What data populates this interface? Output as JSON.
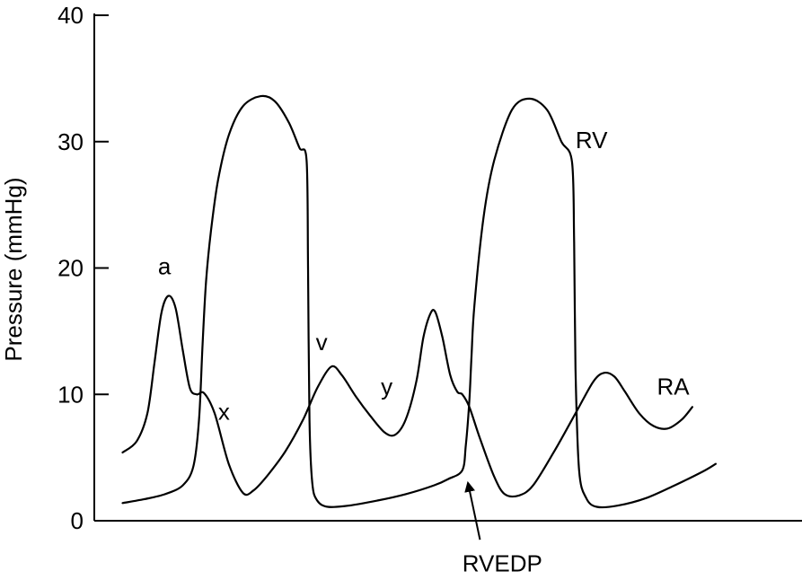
{
  "chart_data": {
    "type": "line",
    "title": "",
    "xlabel": "",
    "ylabel": "Pressure (mmHg)",
    "ylim": [
      0,
      40
    ],
    "xlim": [
      0,
      1
    ],
    "yticks": [
      0,
      10,
      20,
      30,
      40
    ],
    "grid": false,
    "legend": "none",
    "series": [
      {
        "name": "RV",
        "points": [
          [
            0.04,
            1.4
          ],
          [
            0.07,
            1.7
          ],
          [
            0.1,
            2.1
          ],
          [
            0.125,
            2.8
          ],
          [
            0.14,
            4.3
          ],
          [
            0.148,
            8
          ],
          [
            0.153,
            14
          ],
          [
            0.158,
            19
          ],
          [
            0.165,
            23
          ],
          [
            0.175,
            27
          ],
          [
            0.19,
            30.5
          ],
          [
            0.21,
            32.8
          ],
          [
            0.235,
            33.6
          ],
          [
            0.255,
            33.2
          ],
          [
            0.275,
            31.5
          ],
          [
            0.29,
            29.5
          ],
          [
            0.3,
            28.5
          ],
          [
            0.302,
            20
          ],
          [
            0.304,
            8
          ],
          [
            0.308,
            3
          ],
          [
            0.315,
            1.6
          ],
          [
            0.33,
            1.1
          ],
          [
            0.36,
            1.2
          ],
          [
            0.4,
            1.6
          ],
          [
            0.44,
            2.1
          ],
          [
            0.48,
            2.8
          ],
          [
            0.5,
            3.3
          ],
          [
            0.52,
            4.0
          ],
          [
            0.525,
            6
          ],
          [
            0.53,
            9.5
          ],
          [
            0.533,
            13
          ],
          [
            0.537,
            17
          ],
          [
            0.55,
            24
          ],
          [
            0.565,
            28.5
          ],
          [
            0.59,
            32.5
          ],
          [
            0.615,
            33.4
          ],
          [
            0.64,
            32.5
          ],
          [
            0.66,
            30
          ],
          [
            0.675,
            28.4
          ],
          [
            0.678,
            22
          ],
          [
            0.68,
            12
          ],
          [
            0.685,
            4
          ],
          [
            0.695,
            1.8
          ],
          [
            0.71,
            1.1
          ],
          [
            0.74,
            1.2
          ],
          [
            0.78,
            1.8
          ],
          [
            0.82,
            2.8
          ],
          [
            0.86,
            3.9
          ],
          [
            0.878,
            4.5
          ]
        ]
      },
      {
        "name": "RA",
        "points": [
          [
            0.04,
            5.4
          ],
          [
            0.06,
            6.3
          ],
          [
            0.075,
            8.5
          ],
          [
            0.085,
            12.5
          ],
          [
            0.095,
            16.5
          ],
          [
            0.105,
            17.8
          ],
          [
            0.115,
            16.8
          ],
          [
            0.125,
            13.5
          ],
          [
            0.135,
            10.5
          ],
          [
            0.145,
            10.0
          ],
          [
            0.155,
            10.1
          ],
          [
            0.17,
            8.5
          ],
          [
            0.19,
            4.5
          ],
          [
            0.21,
            2.2
          ],
          [
            0.225,
            2.4
          ],
          [
            0.245,
            3.6
          ],
          [
            0.27,
            5.5
          ],
          [
            0.295,
            8
          ],
          [
            0.315,
            10.5
          ],
          [
            0.335,
            12.2
          ],
          [
            0.35,
            11.5
          ],
          [
            0.37,
            9.8
          ],
          [
            0.39,
            8.3
          ],
          [
            0.41,
            7.0
          ],
          [
            0.425,
            6.8
          ],
          [
            0.44,
            8.0
          ],
          [
            0.455,
            11
          ],
          [
            0.465,
            14.5
          ],
          [
            0.475,
            16.4
          ],
          [
            0.482,
            16.5
          ],
          [
            0.492,
            14.5
          ],
          [
            0.503,
            11.5
          ],
          [
            0.513,
            10.2
          ],
          [
            0.52,
            10.0
          ],
          [
            0.53,
            9.0
          ],
          [
            0.545,
            6.5
          ],
          [
            0.565,
            3.5
          ],
          [
            0.58,
            2.1
          ],
          [
            0.6,
            2.0
          ],
          [
            0.62,
            2.8
          ],
          [
            0.65,
            5.5
          ],
          [
            0.68,
            8.5
          ],
          [
            0.705,
            11.0
          ],
          [
            0.72,
            11.7
          ],
          [
            0.735,
            11.4
          ],
          [
            0.75,
            10.2
          ],
          [
            0.77,
            8.5
          ],
          [
            0.79,
            7.5
          ],
          [
            0.81,
            7.3
          ],
          [
            0.83,
            8.0
          ],
          [
            0.845,
            9.0
          ]
        ]
      }
    ],
    "annotations": [
      {
        "text": "a",
        "x": 0.09,
        "y": 19.5
      },
      {
        "text": "x",
        "x": 0.175,
        "y": 8.0
      },
      {
        "text": "v",
        "x": 0.313,
        "y": 13.5
      },
      {
        "text": "y",
        "x": 0.405,
        "y": 10.0
      },
      {
        "text": "RV",
        "x": 0.68,
        "y": 29.5
      },
      {
        "text": "RA",
        "x": 0.795,
        "y": 10.0
      },
      {
        "text": "RVEDP",
        "x": 0.52,
        "y": -4.0
      }
    ],
    "arrow": {
      "label": "RVEDP",
      "from": [
        0.545,
        -1.5
      ],
      "to": [
        0.528,
        3.0
      ]
    }
  }
}
